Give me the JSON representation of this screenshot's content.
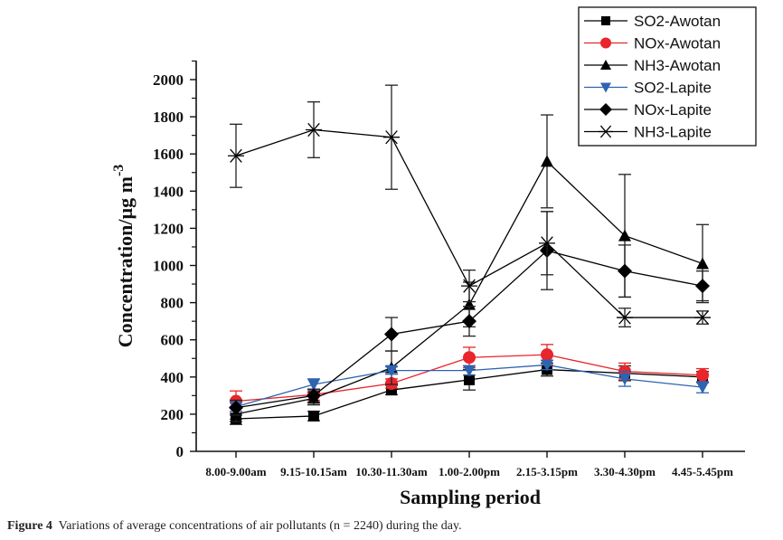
{
  "chart_data": {
    "type": "line",
    "title": "",
    "xlabel": "Sampling period",
    "ylabel": "Concentration/µg m",
    "ylabel_superscript": "-3",
    "ylim": [
      0,
      2100
    ],
    "yticks": [
      0,
      200,
      400,
      600,
      800,
      1000,
      1200,
      1400,
      1600,
      1800,
      2000
    ],
    "grid": false,
    "legend_position": "top-right",
    "categories": [
      "8.00-9.00am",
      "9.15-10.15am",
      "10.30-11.30am",
      "1.00-2.00pm",
      "2.15-3.15pm",
      "3.30-4.30pm",
      "4.45-5.45pm"
    ],
    "series": [
      {
        "name": "SO2-Awotan",
        "marker": "square",
        "color": "#000000",
        "values": [
          175,
          190,
          330,
          385,
          440,
          420,
          400
        ],
        "errors": [
          30,
          25,
          25,
          55,
          35,
          40,
          30
        ]
      },
      {
        "name": "NOx-Awotan",
        "marker": "circle",
        "color": "#e8262b",
        "values": [
          270,
          305,
          365,
          505,
          520,
          430,
          410
        ],
        "errors": [
          55,
          30,
          25,
          55,
          55,
          45,
          35
        ]
      },
      {
        "name": "NH3-Awotan",
        "marker": "triangle-up",
        "color": "#000000",
        "values": [
          200,
          285,
          450,
          790,
          1560,
          1160,
          1010
        ],
        "errors": [
          40,
          35,
          90,
          120,
          250,
          330,
          210
        ]
      },
      {
        "name": "SO2-Lapite",
        "marker": "triangle-down",
        "color": "#2e63b0",
        "values": [
          240,
          360,
          435,
          435,
          465,
          390,
          345
        ],
        "errors": [
          25,
          30,
          20,
          25,
          25,
          40,
          30
        ]
      },
      {
        "name": "NOx-Lapite",
        "marker": "diamond",
        "color": "#000000",
        "values": [
          235,
          300,
          630,
          700,
          1080,
          970,
          890
        ],
        "errors": [
          40,
          35,
          90,
          80,
          210,
          140,
          80
        ]
      },
      {
        "name": "NH3-Lapite",
        "marker": "asterisk",
        "color": "#000000",
        "values": [
          1590,
          1730,
          1690,
          890,
          1120,
          720,
          720
        ],
        "errors": [
          170,
          150,
          280,
          85,
          170,
          50,
          35
        ]
      }
    ]
  },
  "caption": {
    "figure_label": "Figure 4",
    "text": "Variations of average concentrations of air pollutants (n = 2240) during the day."
  }
}
